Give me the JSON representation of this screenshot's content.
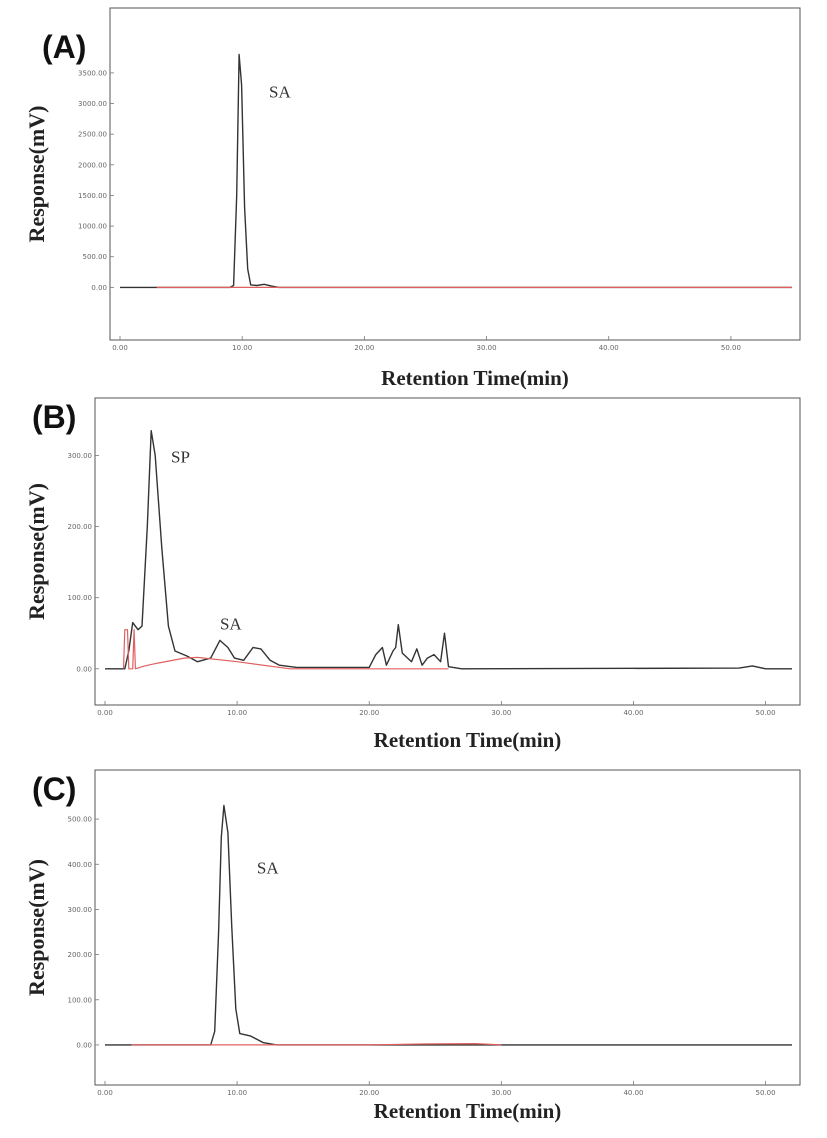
{
  "chart_data": [
    {
      "type": "line",
      "panel_label": "(A)",
      "ylabel": "Response(mV)",
      "xlabel": "Retention Time(min)",
      "xlim": [
        0,
        55
      ],
      "ylim": [
        -500,
        4200
      ],
      "xticks": [
        {
          "value": 0,
          "label": "0.00"
        },
        {
          "value": 10,
          "label": "10.00"
        },
        {
          "value": 20,
          "label": "20.00"
        },
        {
          "value": 30,
          "label": "30.00"
        },
        {
          "value": 40,
          "label": "40.00"
        },
        {
          "value": 50,
          "label": "50.00"
        }
      ],
      "yticks": [
        {
          "value": 0,
          "label": "0.00"
        },
        {
          "value": 500,
          "label": "500.00"
        },
        {
          "value": 1000,
          "label": "1000.00"
        },
        {
          "value": 1500,
          "label": "1500.00"
        },
        {
          "value": 2000,
          "label": "2000.00"
        },
        {
          "value": 2500,
          "label": "2500.00"
        },
        {
          "value": 3000,
          "label": "3000.00"
        },
        {
          "value": 3500,
          "label": "3500.00"
        }
      ],
      "annotations": [
        {
          "text": "SA",
          "x": 12.2,
          "y": 3100
        }
      ],
      "series": [
        {
          "color": "#333333",
          "points": [
            [
              0,
              0
            ],
            [
              9,
              0
            ],
            [
              9.3,
              30
            ],
            [
              9.55,
              1500
            ],
            [
              9.75,
              3800
            ],
            [
              9.95,
              3300
            ],
            [
              10.2,
              1300
            ],
            [
              10.45,
              300
            ],
            [
              10.7,
              40
            ],
            [
              11.2,
              30
            ],
            [
              11.8,
              50
            ],
            [
              12.4,
              20
            ],
            [
              13,
              0
            ],
            [
              55,
              0
            ]
          ]
        },
        {
          "color": "#e06060",
          "points": [
            [
              3,
              0
            ],
            [
              55,
              0
            ]
          ]
        }
      ]
    },
    {
      "type": "line",
      "panel_label": "(B)",
      "ylabel": "Response(mV)",
      "xlabel": "Retention Time(min)",
      "xlim": [
        0,
        52
      ],
      "ylim": [
        -20,
        350
      ],
      "xticks": [
        {
          "value": 0,
          "label": "0.00"
        },
        {
          "value": 10,
          "label": "10.00"
        },
        {
          "value": 20,
          "label": "20.00"
        },
        {
          "value": 30,
          "label": "30.00"
        },
        {
          "value": 40,
          "label": "40.00"
        },
        {
          "value": 50,
          "label": "50.00"
        }
      ],
      "yticks": [
        {
          "value": 0,
          "label": "0.00"
        },
        {
          "value": 100,
          "label": "100.00"
        },
        {
          "value": 200,
          "label": "200.00"
        },
        {
          "value": 300,
          "label": "300.00"
        }
      ],
      "annotations": [
        {
          "text": "SP",
          "x": 5,
          "y": 290
        },
        {
          "text": "SA",
          "x": 8.7,
          "y": 55
        }
      ],
      "series": [
        {
          "color": "#333333",
          "points": [
            [
              0,
              0
            ],
            [
              1.5,
              0
            ],
            [
              1.8,
              25
            ],
            [
              2.1,
              65
            ],
            [
              2.5,
              55
            ],
            [
              2.8,
              60
            ],
            [
              3.2,
              200
            ],
            [
              3.5,
              335
            ],
            [
              3.8,
              300
            ],
            [
              4.3,
              170
            ],
            [
              4.8,
              60
            ],
            [
              5.3,
              25
            ],
            [
              6.2,
              18
            ],
            [
              7,
              10
            ],
            [
              8,
              15
            ],
            [
              8.7,
              40
            ],
            [
              9.3,
              30
            ],
            [
              9.8,
              15
            ],
            [
              10.5,
              12
            ],
            [
              11.2,
              30
            ],
            [
              11.8,
              28
            ],
            [
              12.5,
              12
            ],
            [
              13.2,
              5
            ],
            [
              14.5,
              2
            ],
            [
              20,
              2
            ],
            [
              20.5,
              20
            ],
            [
              21,
              30
            ],
            [
              21.3,
              5
            ],
            [
              21.8,
              25
            ],
            [
              22,
              30
            ],
            [
              22.2,
              62
            ],
            [
              22.5,
              22
            ],
            [
              23.2,
              10
            ],
            [
              23.6,
              28
            ],
            [
              24,
              5
            ],
            [
              24.4,
              15
            ],
            [
              24.9,
              20
            ],
            [
              25.4,
              10
            ],
            [
              25.7,
              50
            ],
            [
              26,
              3
            ],
            [
              27,
              0
            ],
            [
              48,
              1
            ],
            [
              49,
              4
            ],
            [
              50,
              0
            ],
            [
              52,
              0
            ]
          ]
        },
        {
          "color": "#e06060",
          "points": [
            [
              1.4,
              0
            ],
            [
              1.5,
              55
            ],
            [
              1.7,
              55
            ],
            [
              1.8,
              0
            ],
            [
              2.1,
              0
            ],
            [
              2.2,
              55
            ],
            [
              2.3,
              0
            ],
            [
              3,
              4
            ],
            [
              4,
              8
            ],
            [
              6,
              15
            ],
            [
              7,
              16
            ],
            [
              10,
              10
            ],
            [
              14,
              0
            ],
            [
              20.5,
              0
            ],
            [
              26,
              0
            ]
          ]
        }
      ]
    },
    {
      "type": "line",
      "panel_label": "(C)",
      "ylabel": "Response(mV)",
      "xlabel": "Retention Time(min)",
      "xlim": [
        0,
        52
      ],
      "ylim": [
        -40,
        560
      ],
      "xticks": [
        {
          "value": 0,
          "label": "0.00"
        },
        {
          "value": 10,
          "label": "10.00"
        },
        {
          "value": 20,
          "label": "20.00"
        },
        {
          "value": 30,
          "label": "30.00"
        },
        {
          "value": 40,
          "label": "40.00"
        },
        {
          "value": 50,
          "label": "50.00"
        }
      ],
      "yticks": [
        {
          "value": 0,
          "label": "0.00"
        },
        {
          "value": 100,
          "label": "100.00"
        },
        {
          "value": 200,
          "label": "200.00"
        },
        {
          "value": 300,
          "label": "300.00"
        },
        {
          "value": 400,
          "label": "400.00"
        },
        {
          "value": 500,
          "label": "500.00"
        }
      ],
      "annotations": [
        {
          "text": "SA",
          "x": 11.5,
          "y": 380
        }
      ],
      "series": [
        {
          "color": "#333333",
          "points": [
            [
              0,
              0
            ],
            [
              8,
              0
            ],
            [
              8.3,
              30
            ],
            [
              8.6,
              250
            ],
            [
              8.8,
              460
            ],
            [
              9,
              530
            ],
            [
              9.3,
              470
            ],
            [
              9.6,
              260
            ],
            [
              9.9,
              80
            ],
            [
              10.2,
              25
            ],
            [
              11,
              20
            ],
            [
              12,
              5
            ],
            [
              13,
              0
            ],
            [
              52,
              0
            ]
          ]
        },
        {
          "color": "#e06060",
          "points": [
            [
              2,
              0
            ],
            [
              8,
              0
            ],
            [
              10,
              0
            ],
            [
              16,
              0
            ],
            [
              20,
              0
            ],
            [
              24,
              2
            ],
            [
              28,
              3
            ],
            [
              30,
              0
            ]
          ]
        }
      ]
    }
  ]
}
